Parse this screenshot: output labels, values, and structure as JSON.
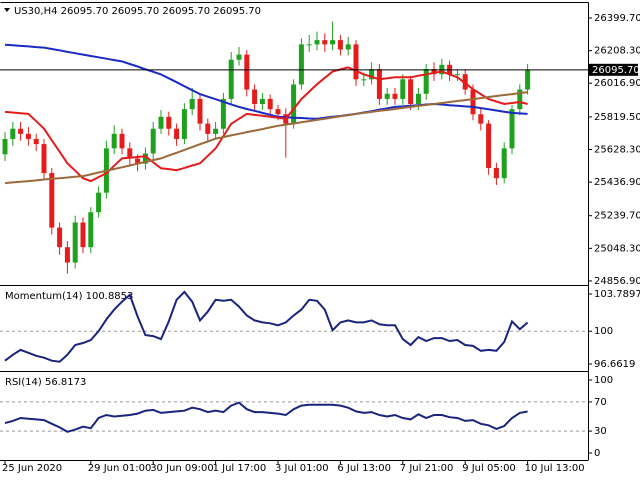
{
  "chart_data": [
    {
      "type": "candlestick",
      "title": "US30,H4 26095.70 26095.70 26095.70 26095.70",
      "categories": [
        "25 Jun 2020",
        null,
        null,
        null,
        null,
        null,
        null,
        null,
        null,
        null,
        null,
        "29 Jun 01:00",
        null,
        null,
        null,
        null,
        null,
        null,
        null,
        "30 Jun 09:00",
        null,
        null,
        null,
        null,
        null,
        null,
        null,
        "1 Jul 17:00",
        null,
        null,
        null,
        null,
        null,
        null,
        null,
        "3 Jul 01:00",
        null,
        null,
        null,
        null,
        null,
        null,
        null,
        "6 Jul 13:00",
        null,
        null,
        null,
        null,
        null,
        null,
        null,
        "7 Jul 21:00",
        null,
        null,
        null,
        null,
        null,
        null,
        null,
        "9 Jul 05:00",
        null,
        null,
        null,
        null,
        null,
        null,
        null,
        "10 Jul 13:00"
      ],
      "open": [
        25600,
        25690,
        25750,
        25720,
        25690,
        25660,
        25490,
        25170,
        25055,
        24965,
        25200,
        25055,
        25260,
        25375,
        25635,
        25720,
        25635,
        25575,
        25545,
        25605,
        25750,
        25820,
        25750,
        25690,
        25865,
        25925,
        25780,
        25720,
        25750,
        25925,
        26155,
        26185,
        25980,
        25895,
        25925,
        25865,
        25835,
        25780,
        26010,
        26245,
        26245,
        26270,
        26245,
        26270,
        26215,
        26245,
        26040,
        26040,
        26100,
        25925,
        25955,
        25925,
        26040,
        25895,
        25955,
        26100,
        26070,
        26125,
        26070,
        26070,
        25980,
        25835,
        25780,
        25520,
        25460,
        25635,
        25865,
        25980
      ],
      "high": [
        25730,
        25790,
        25790,
        25760,
        25720,
        25690,
        25520,
        25200,
        25090,
        25240,
        25230,
        25290,
        25410,
        25680,
        25770,
        25750,
        25670,
        25600,
        25640,
        25790,
        25860,
        25850,
        25780,
        25900,
        25990,
        25950,
        25810,
        25790,
        25960,
        26200,
        26230,
        26210,
        26010,
        25960,
        25950,
        25890,
        25870,
        26040,
        26280,
        26300,
        26320,
        26310,
        26380,
        26300,
        26290,
        26270,
        26080,
        26140,
        26130,
        25990,
        25990,
        26070,
        26060,
        25990,
        26130,
        26140,
        26160,
        26150,
        26100,
        26100,
        26010,
        25870,
        25800,
        25550,
        25670,
        25890,
        26010,
        26130
      ],
      "low": [
        25560,
        25650,
        25680,
        25650,
        25620,
        25450,
        25130,
        25010,
        24900,
        24930,
        25020,
        25020,
        25230,
        25340,
        25600,
        25600,
        25540,
        25500,
        25510,
        25570,
        25720,
        25710,
        25650,
        25660,
        25830,
        25740,
        25680,
        25690,
        25720,
        25890,
        26120,
        25940,
        25860,
        25860,
        25830,
        25800,
        25580,
        25750,
        25980,
        26200,
        26210,
        26200,
        26210,
        26180,
        26180,
        26000,
        26000,
        26010,
        25890,
        25890,
        25890,
        25890,
        25860,
        25860,
        25920,
        26030,
        26040,
        26030,
        26030,
        25950,
        25800,
        25740,
        25480,
        25420,
        25430,
        25600,
        25830,
        25950
      ],
      "close": [
        25690,
        25750,
        25720,
        25690,
        25660,
        25490,
        25170,
        25055,
        24965,
        25200,
        25055,
        25260,
        25375,
        25635,
        25720,
        25635,
        25575,
        25545,
        25605,
        25750,
        25820,
        25750,
        25690,
        25865,
        25925,
        25780,
        25720,
        25750,
        25925,
        26155,
        26185,
        25980,
        25895,
        25925,
        25865,
        25835,
        25780,
        26010,
        26245,
        26245,
        26270,
        26245,
        26270,
        26215,
        26245,
        26040,
        26040,
        26100,
        25925,
        25955,
        25925,
        26040,
        25895,
        25955,
        26100,
        26070,
        26125,
        26070,
        26070,
        25980,
        25835,
        25780,
        25520,
        25460,
        25635,
        25865,
        25980,
        26095.7
      ],
      "up_color": "#1fa11f",
      "down_color": "#e41c1c",
      "series": [
        {
          "color": "#1c2ac4",
          "values": [
            26243,
            26240,
            26236,
            26233,
            26229,
            26226,
            26218,
            26210,
            26201,
            26193,
            26185,
            26177,
            26169,
            26161,
            26153,
            26145,
            26130,
            26115,
            26099,
            26084,
            26069,
            26046,
            26023,
            25999,
            25976,
            25953,
            25938,
            25923,
            25908,
            25893,
            25878,
            25866,
            25855,
            25843,
            25832,
            25820,
            25818,
            25815,
            25813,
            25810,
            25808,
            25814,
            25820,
            25825,
            25831,
            25837,
            25845,
            25853,
            25862,
            25870,
            25878,
            25881,
            25885,
            25888,
            25892,
            25895,
            25892,
            25888,
            25885,
            25881,
            25878,
            25871,
            25864,
            25857,
            25850,
            25843,
            25840,
            25837
          ]
        },
        {
          "color": "#e41c1c",
          "values": [
            25849,
            25845,
            25841,
            25837,
            25794,
            25750,
            25682,
            25615,
            25547,
            25504,
            25460,
            25443,
            25466,
            25489,
            25533,
            25576,
            25580,
            25584,
            25588,
            25553,
            25518,
            25513,
            25507,
            25520,
            25534,
            25547,
            25591,
            25634,
            25707,
            25779,
            25808,
            25837,
            25831,
            25826,
            25820,
            25814,
            25808,
            25866,
            25924,
            25968,
            26011,
            26049,
            26086,
            26098,
            26110,
            26090,
            26069,
            26055,
            26040,
            26046,
            26052,
            26052,
            26052,
            26061,
            26069,
            26078,
            26086,
            26069,
            26052,
            26017,
            25982,
            25953,
            25924,
            25910,
            25895,
            25901,
            25907,
            25895
          ]
        },
        {
          "color": "#9c6a3a",
          "values": [
            25431,
            25435,
            25439,
            25443,
            25447,
            25452,
            25456,
            25460,
            25464,
            25468,
            25472,
            25482,
            25493,
            25503,
            25514,
            25524,
            25534,
            25545,
            25555,
            25566,
            25576,
            25593,
            25609,
            25626,
            25642,
            25659,
            25675,
            25692,
            25701,
            25711,
            25720,
            25730,
            25739,
            25748,
            25758,
            25767,
            25774,
            25781,
            25788,
            25795,
            25802,
            25809,
            25816,
            25823,
            25830,
            25837,
            25843,
            25849,
            25855,
            25860,
            25866,
            25872,
            25878,
            25884,
            25889,
            25895,
            25901,
            25907,
            25913,
            25918,
            25924,
            25930,
            25936,
            25942,
            25948,
            25953,
            25959,
            25965
          ]
        }
      ],
      "price_line": {
        "value": 26095.7,
        "label": "26095.70"
      },
      "ylim": [
        24839,
        26476
      ],
      "yticks": [
        {
          "value": 26399.7,
          "label": "26399.70"
        },
        {
          "value": 26208.3,
          "label": "26208.30"
        },
        {
          "value": 26016.9,
          "label": "26016.90"
        },
        {
          "value": 25819.5,
          "label": "25819.50"
        },
        {
          "value": 25628.3,
          "label": "25628.30"
        },
        {
          "value": 25436.9,
          "label": "25436.90"
        },
        {
          "value": 25239.7,
          "label": "25239.70"
        },
        {
          "value": 25048.3,
          "label": "25048.30"
        },
        {
          "value": 24856.9,
          "label": "24856.90"
        }
      ]
    },
    {
      "type": "line",
      "title": "Momentum(14) 100.8853",
      "color": "#1a237e",
      "values": [
        97.0,
        97.6,
        98.1,
        97.8,
        97.5,
        97.3,
        97.0,
        96.9,
        97.6,
        98.6,
        98.8,
        99.1,
        100.0,
        101.2,
        102.2,
        103.0,
        103.7,
        101.5,
        99.6,
        99.5,
        99.2,
        101.0,
        103.2,
        104.0,
        103.0,
        101.1,
        102.0,
        103.2,
        103.1,
        103.2,
        102.5,
        101.6,
        101.1,
        100.9,
        100.8,
        100.6,
        100.9,
        101.6,
        102.2,
        103.2,
        103.1,
        102.2,
        100.1,
        100.9,
        101.1,
        100.9,
        100.9,
        101.1,
        100.7,
        100.6,
        100.6,
        99.2,
        98.6,
        99.4,
        99.0,
        99.3,
        99.3,
        99.0,
        99.1,
        98.6,
        98.5,
        98.0,
        98.1,
        98.0,
        98.9,
        101.0,
        100.2,
        100.8853
      ],
      "ylim": [
        96.05,
        104.5
      ],
      "yticks": [
        103.7897,
        100,
        96.6619
      ],
      "levels": [
        100
      ]
    },
    {
      "type": "line",
      "title": "RSI(14) 56.8173",
      "color": "#1a237e",
      "values": [
        41,
        44,
        48,
        47,
        46,
        45,
        40,
        35,
        29,
        32,
        36,
        34,
        48,
        52,
        50,
        51,
        52,
        54,
        58,
        59,
        55,
        56,
        57,
        58,
        62,
        60,
        56,
        58,
        56,
        65,
        69,
        60,
        56,
        56,
        55,
        54,
        52,
        60,
        65,
        66,
        66,
        66,
        66,
        65,
        62,
        57,
        55,
        56,
        52,
        50,
        52,
        48,
        46,
        53,
        48,
        52,
        52,
        49,
        48,
        44,
        45,
        40,
        38,
        33,
        37,
        48,
        55,
        56.8173
      ],
      "ylim": [
        -9.6,
        109.6
      ],
      "yticks": [
        100,
        70,
        30,
        0
      ],
      "levels": [
        70,
        30
      ]
    }
  ]
}
